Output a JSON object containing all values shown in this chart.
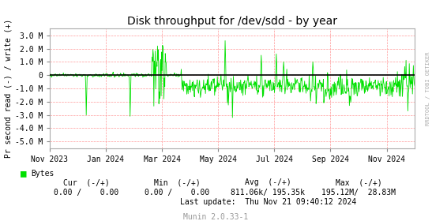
{
  "title": "Disk throughput for /dev/sdd - by year",
  "ylabel": "Pr second read (-) / write (+)",
  "right_label": "RRDTOOL / TOBI OETIKER",
  "x_tick_labels": [
    "Nov 2023",
    "Jan 2024",
    "Mar 2024",
    "May 2024",
    "Jul 2024",
    "Sep 2024",
    "Nov 2024"
  ],
  "x_tick_pos": [
    0.0,
    0.1538,
    0.3077,
    0.4615,
    0.6154,
    0.7692,
    0.9231
  ],
  "y_tick_positions": [
    3000000,
    2000000,
    1000000,
    0,
    -1000000,
    -2000000,
    -3000000,
    -4000000,
    -5000000
  ],
  "y_tick_labels": [
    "3.0 M",
    "2.0 M",
    "1.0 M",
    "0",
    "-1.0 M",
    "-2.0 M",
    "-3.0 M",
    "-4.0 M",
    "-5.0 M"
  ],
  "ylim": [
    -5500000,
    3500000
  ],
  "line_color": "#00e000",
  "zero_line_color": "#000000",
  "grid_color": "#ff9999",
  "bg_color": "#ffffff",
  "plot_bg_color": "#ffffff",
  "legend_label": "Bytes",
  "legend_color": "#00e000",
  "munin_version": "Munin 2.0.33-1",
  "num_points": 800,
  "seed": 42
}
